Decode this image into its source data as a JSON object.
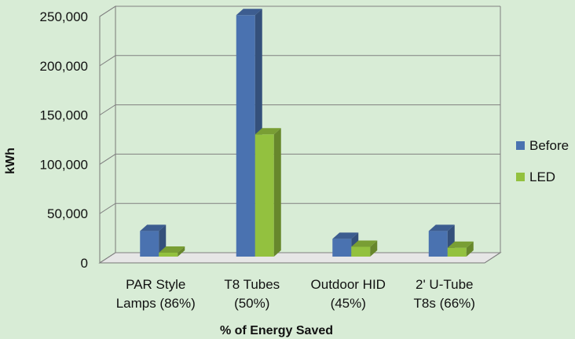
{
  "chart_data": {
    "type": "bar",
    "categories": [
      [
        "PAR Style",
        "Lamps (86%)"
      ],
      [
        "T8 Tubes",
        "(50%)"
      ],
      [
        "Outdoor HID",
        "(45%)"
      ],
      [
        "2' U-Tube",
        "T8s (66%)"
      ]
    ],
    "series": [
      {
        "name": "Before",
        "color": "#4a72b0",
        "values": [
          26000,
          245000,
          18000,
          26000
        ]
      },
      {
        "name": "LED",
        "color": "#93c13f",
        "values": [
          4000,
          124000,
          10000,
          9000
        ]
      }
    ],
    "xlabel": "% of Energy Saved",
    "ylabel": "kWh",
    "ylim": [
      0,
      250000
    ],
    "yticks": [
      "0",
      "50,000",
      "100,000",
      "150,000",
      "200,000",
      "250,000"
    ],
    "tick_values": [
      0,
      50000,
      100000,
      150000,
      200000,
      250000
    ],
    "grid": true,
    "legend": "right",
    "style": "3d-clustered"
  }
}
